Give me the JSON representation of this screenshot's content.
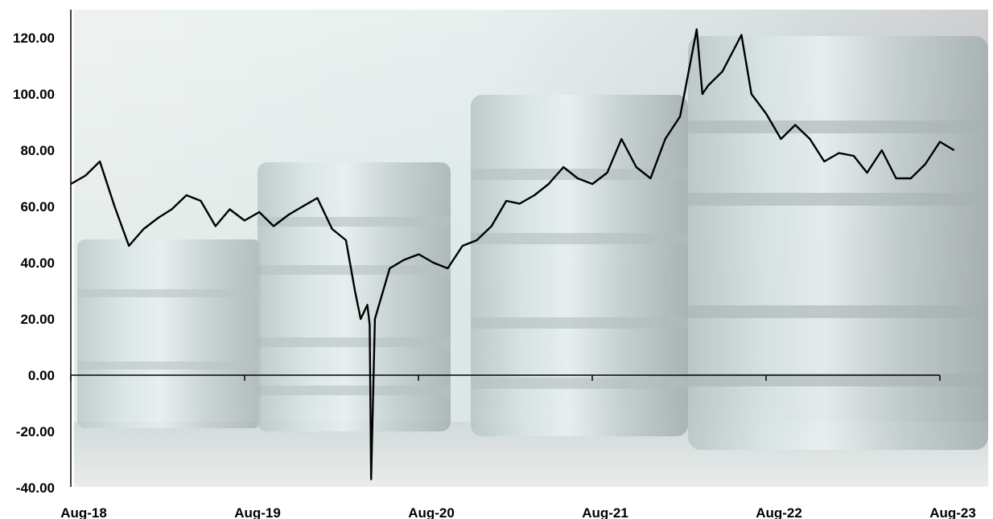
{
  "chart_data": {
    "type": "line",
    "title": "",
    "xlabel": "",
    "ylabel": "",
    "ylim": [
      -40,
      125
    ],
    "grid": false,
    "legend": "none",
    "background": "oil barrels photo",
    "line_color": "#000000",
    "y_ticks": [
      "120.00",
      "100.00",
      "80.00",
      "60.00",
      "40.00",
      "20.00",
      "0.00",
      "-20.00",
      "-40.00"
    ],
    "x_ticks": [
      "Aug-18",
      "Aug-19",
      "Aug-20",
      "Aug-21",
      "Aug-22",
      "Aug-23"
    ],
    "series": [
      {
        "x": [
          "2018-08-01",
          "2018-09-01",
          "2018-10-01",
          "2018-11-01",
          "2018-12-01",
          "2019-01-01",
          "2019-02-01",
          "2019-03-01",
          "2019-04-01",
          "2019-05-01",
          "2019-06-01",
          "2019-07-01",
          "2019-08-01",
          "2019-09-01",
          "2019-10-01",
          "2019-11-01",
          "2019-12-01",
          "2020-01-01",
          "2020-02-01",
          "2020-03-01",
          "2020-03-20",
          "2020-04-01",
          "2020-04-15",
          "2020-04-20",
          "2020-04-23",
          "2020-05-01",
          "2020-06-01",
          "2020-07-01",
          "2020-08-01",
          "2020-09-01",
          "2020-10-01",
          "2020-11-01",
          "2020-12-01",
          "2021-01-01",
          "2021-02-01",
          "2021-03-01",
          "2021-04-01",
          "2021-05-01",
          "2021-06-01",
          "2021-07-01",
          "2021-08-01",
          "2021-09-01",
          "2021-10-01",
          "2021-11-01",
          "2021-12-01",
          "2022-01-01",
          "2022-02-01",
          "2022-03-08",
          "2022-03-20",
          "2022-04-01",
          "2022-05-01",
          "2022-06-10",
          "2022-07-01",
          "2022-08-01",
          "2022-09-01",
          "2022-10-01",
          "2022-11-01",
          "2022-12-01",
          "2023-01-01",
          "2023-02-01",
          "2023-03-01",
          "2023-04-01",
          "2023-05-01",
          "2023-06-01",
          "2023-07-01",
          "2023-08-01",
          "2023-08-31"
        ],
        "y": [
          68,
          71,
          76,
          60,
          46,
          52,
          56,
          59,
          64,
          62,
          53,
          59,
          55,
          58,
          53,
          57,
          60,
          63,
          52,
          48,
          30,
          20,
          25,
          18,
          -37,
          20,
          38,
          41,
          43,
          40,
          38,
          46,
          48,
          53,
          62,
          61,
          64,
          68,
          74,
          70,
          68,
          72,
          84,
          74,
          70,
          84,
          92,
          123,
          100,
          103,
          108,
          121,
          100,
          93,
          84,
          89,
          84,
          76,
          79,
          78,
          72,
          80,
          70,
          70,
          75,
          83,
          80
        ]
      }
    ]
  }
}
